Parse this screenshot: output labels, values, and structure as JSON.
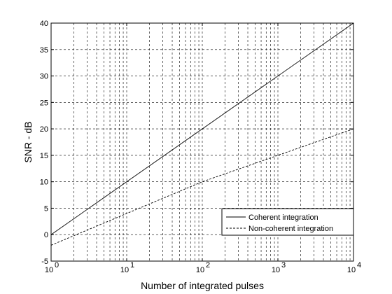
{
  "chart_data": {
    "type": "line",
    "title": "",
    "xlabel": "Number of integrated pulses",
    "ylabel": "SNR - dB",
    "x_scale": "log",
    "xlim": [
      1,
      10000
    ],
    "ylim": [
      -5,
      40
    ],
    "x_ticks": [
      1,
      10,
      100,
      1000,
      10000
    ],
    "x_tick_labels": [
      {
        "base": "10",
        "exp": "0"
      },
      {
        "base": "10",
        "exp": "1"
      },
      {
        "base": "10",
        "exp": "2"
      },
      {
        "base": "10",
        "exp": "3"
      },
      {
        "base": "10",
        "exp": "4"
      }
    ],
    "y_ticks": [
      -5,
      0,
      5,
      10,
      15,
      20,
      25,
      30,
      35,
      40
    ],
    "y_tick_labels": [
      "-5",
      "0",
      "5",
      "10",
      "15",
      "20",
      "25",
      "30",
      "35",
      "40"
    ],
    "grid": true,
    "grid_style": "dashed",
    "legend_position": "bottom-right",
    "series": [
      {
        "name": "Coherent integration",
        "style": "solid",
        "x": [
          1,
          10,
          100,
          1000,
          10000
        ],
        "y": [
          0,
          10,
          20,
          30,
          40
        ]
      },
      {
        "name": "Non-coherent integration",
        "style": "dashed",
        "x": [
          1,
          10,
          100,
          1000,
          10000
        ],
        "y": [
          -2,
          4,
          10,
          15,
          20
        ]
      }
    ]
  }
}
